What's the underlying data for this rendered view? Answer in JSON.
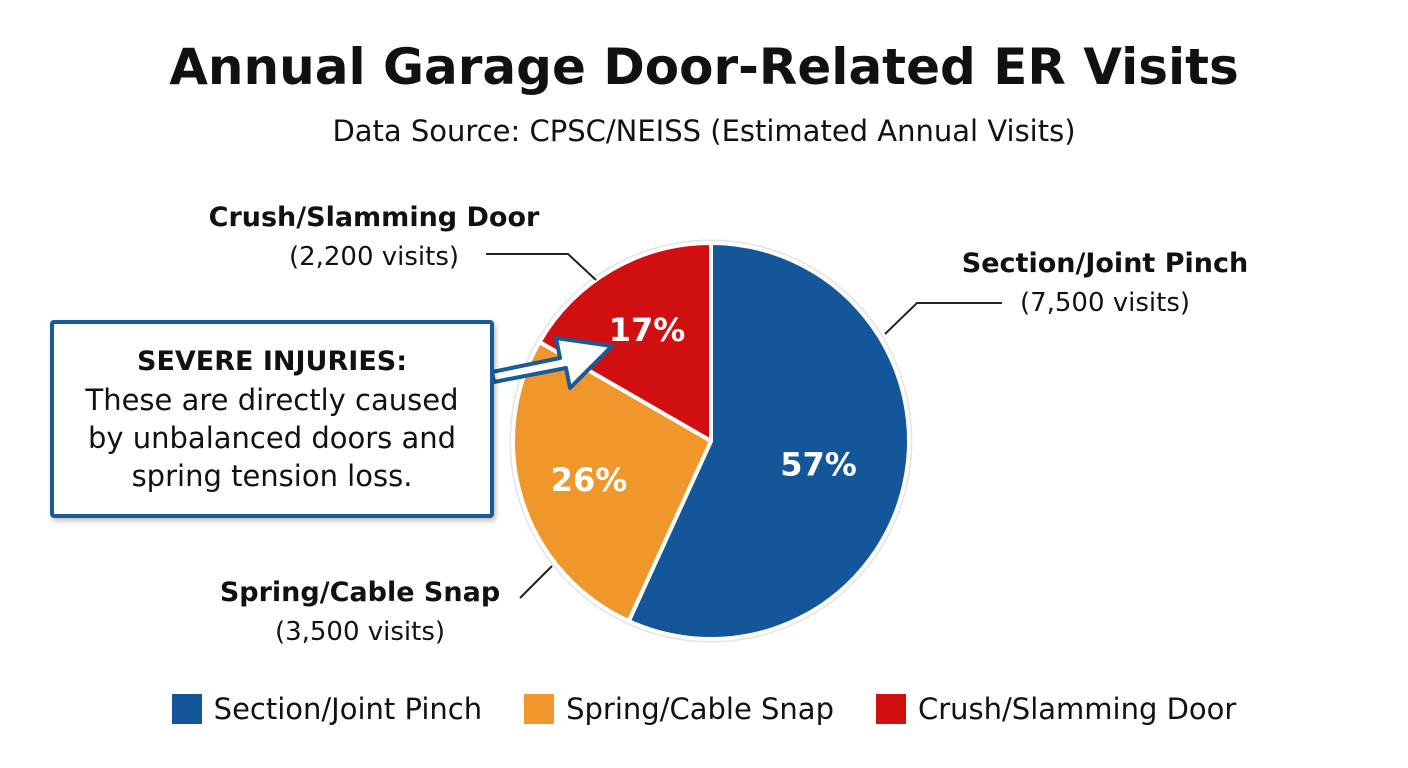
{
  "title": "Annual Garage Door-Related ER Visits",
  "subtitle": "Data Source: CPSC/NEISS (Estimated Annual Visits)",
  "callout": {
    "heading": "SEVERE INJURIES:",
    "body": "These are directly caused by unbalanced doors and spring tension loss."
  },
  "chart_data": {
    "type": "pie",
    "title": "Annual Garage Door-Related ER Visits",
    "subtitle": "Data Source: CPSC/NEISS (Estimated Annual Visits)",
    "legend_position": "bottom",
    "slices": [
      {
        "label": "Section/Joint Pinch",
        "value": 7500,
        "value_label": "(7,500 visits)",
        "percent_label": "57%",
        "color": "#14569a"
      },
      {
        "label": "Spring/Cable Snap",
        "value": 3500,
        "value_label": "(3,500 visits)",
        "percent_label": "26%",
        "color": "#f0972c"
      },
      {
        "label": "Crush/Slamming Door",
        "value": 2200,
        "value_label": "(2,200 visits)",
        "percent_label": "17%",
        "color": "#d20f10"
      }
    ]
  }
}
